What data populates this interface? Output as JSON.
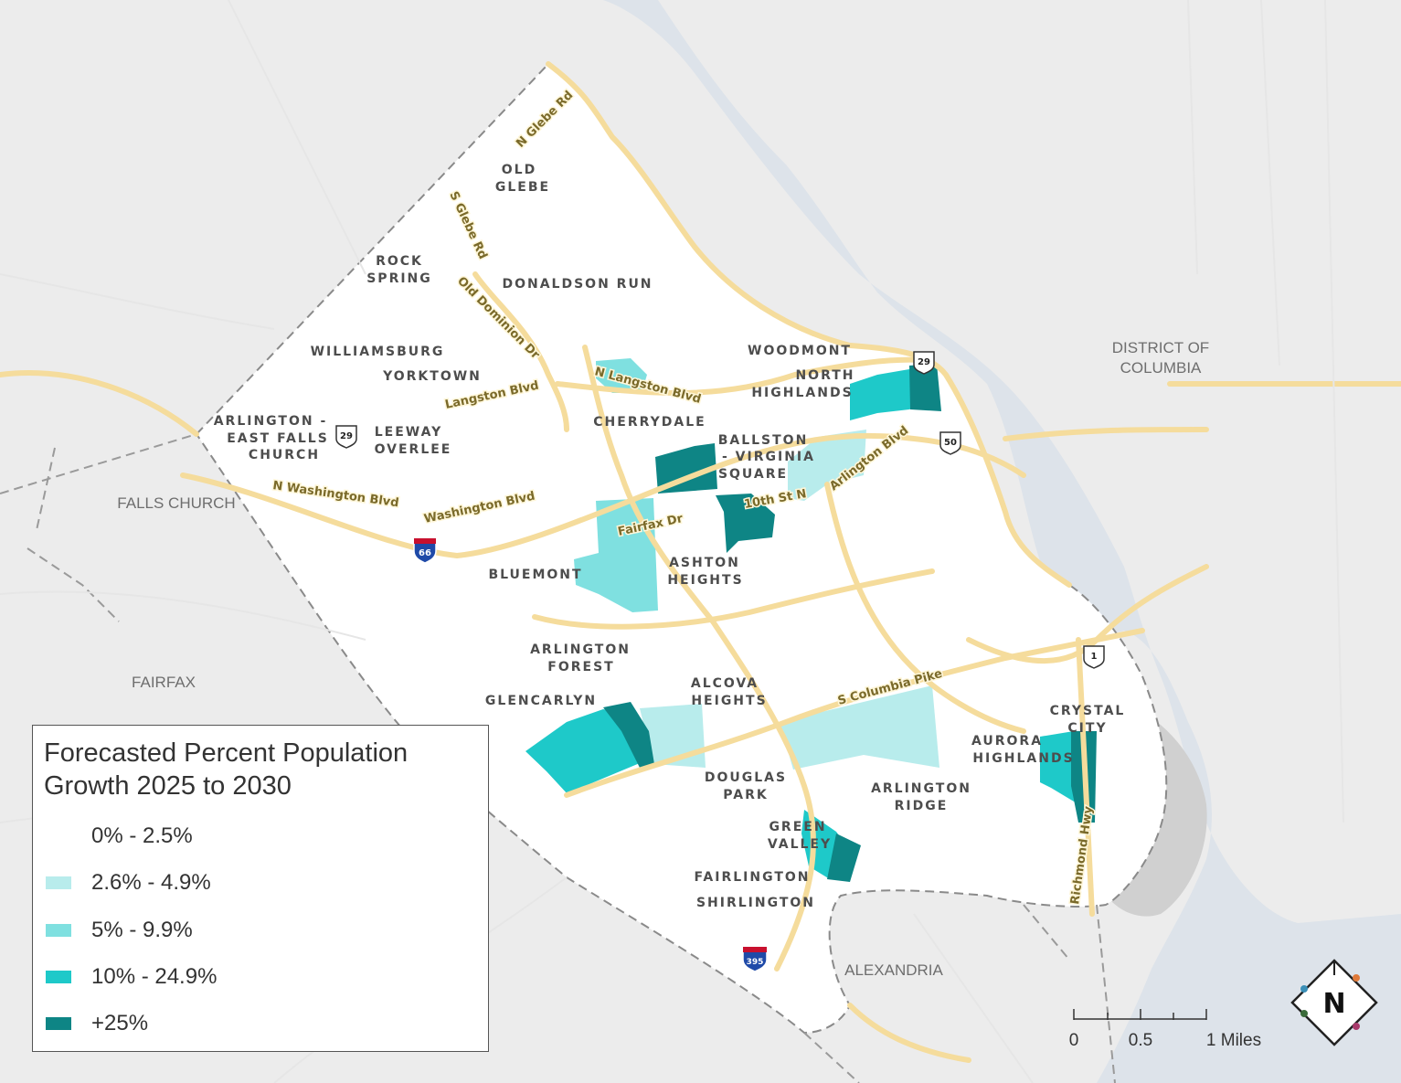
{
  "legend": {
    "title_line1": "Forecasted Percent Population",
    "title_line2": "Growth 2025 to 2030",
    "items": [
      {
        "label": "0% - 2.5%",
        "color": "#ffffff"
      },
      {
        "label": "2.6% - 4.9%",
        "color": "#b8ecec"
      },
      {
        "label": "5% - 9.9%",
        "color": "#7fe0e0"
      },
      {
        "label": "10% - 24.9%",
        "color": "#1ec9c9"
      },
      {
        "label": "+25%",
        "color": "#0e8585"
      }
    ]
  },
  "neighborhoods": {
    "old_glebe_1": "OLD",
    "old_glebe_2": "GLEBE",
    "rock_spring_1": "ROCK",
    "rock_spring_2": "SPRING",
    "donaldson_run": "DONALDSON RUN",
    "williamsburg": "WILLIAMSBURG",
    "yorktown": "YORKTOWN",
    "woodmont": "WOODMONT",
    "north_highlands_1": "NORTH",
    "north_highlands_2": "HIGHLANDS",
    "arlington_efc_1": "ARLINGTON -",
    "arlington_efc_2": "EAST FALLS",
    "arlington_efc_3": "CHURCH",
    "leeway_overlee_1": "LEEWAY",
    "leeway_overlee_2": "OVERLEE",
    "cherrydale": "CHERRYDALE",
    "ballston_1": "BALLSTON",
    "ballston_2": "- VIRGINIA",
    "ballston_3": "SQUARE",
    "bluemont": "BLUEMONT",
    "ashton_heights_1": "ASHTON",
    "ashton_heights_2": "HEIGHTS",
    "arlington_forest_1": "ARLINGTON",
    "arlington_forest_2": "FOREST",
    "glencarlyn": "GLENCARLYN",
    "alcova_heights_1": "ALCOVA",
    "alcova_heights_2": "HEIGHTS",
    "douglas_park_1": "DOUGLAS",
    "douglas_park_2": "PARK",
    "green_valley_1": "GREEN",
    "green_valley_2": "VALLEY",
    "fairlington": "FAIRLINGTON",
    "shirlington": "SHIRLINGTON",
    "arlington_ridge_1": "ARLINGTON",
    "arlington_ridge_2": "RIDGE",
    "aurora_highlands_1": "AURORA",
    "aurora_highlands_2": "HIGHLANDS",
    "crystal_city_1": "CRYSTAL",
    "crystal_city_2": "CITY"
  },
  "regions": {
    "dc_1": "DISTRICT OF",
    "dc_2": "COLUMBIA",
    "falls_church": "FALLS CHURCH",
    "fairfax": "FAIRFAX",
    "alexandria": "ALEXANDRIA"
  },
  "roads": {
    "n_glebe_rd": "N Glebe Rd",
    "s_glebe_rd": "S Glebe Rd",
    "old_dominion_dr": "Old Dominion Dr",
    "n_langston_blvd": "N Langston Blvd",
    "langston_blvd": "Langston Blvd",
    "n_washington_blvd": "N Washington Blvd",
    "washington_blvd": "Washington Blvd",
    "fairfax_dr": "Fairfax Dr",
    "tenth_st_n": "10th St N",
    "arlington_blvd": "Arlington Blvd",
    "s_columbia_pike": "S Columbia Pike",
    "richmond_hwy": "Richmond Hwy"
  },
  "shields": {
    "us29_a": "29",
    "us29_b": "29",
    "us50": "50",
    "us1": "1",
    "i66": "66",
    "i395": "395"
  },
  "scale_bar": {
    "tick_0": "0",
    "tick_1": "0.5",
    "tick_2": "1 Miles"
  },
  "north_arrow": {
    "letter": "N"
  }
}
